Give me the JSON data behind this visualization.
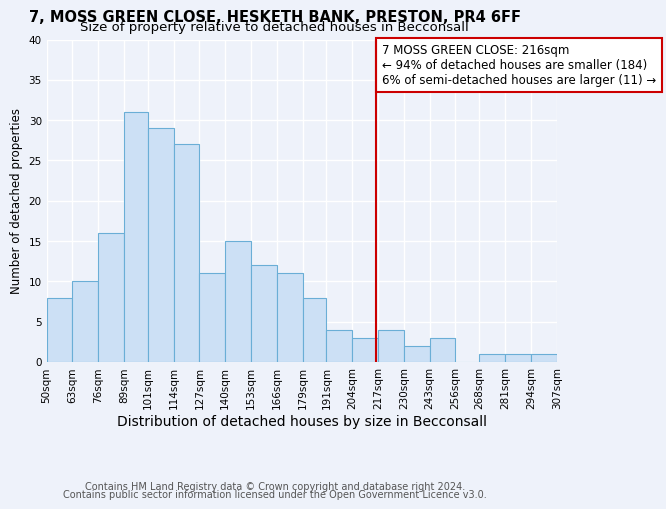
{
  "title1": "7, MOSS GREEN CLOSE, HESKETH BANK, PRESTON, PR4 6FF",
  "title2": "Size of property relative to detached houses in Becconsall",
  "xlabel": "Distribution of detached houses by size in Becconsall",
  "ylabel": "Number of detached properties",
  "bar_color": "#cce0f5",
  "bar_edge_color": "#6aaed6",
  "bins": [
    50,
    63,
    76,
    89,
    101,
    114,
    127,
    140,
    153,
    166,
    179,
    191,
    204,
    217,
    230,
    243,
    256,
    268,
    281,
    294,
    307
  ],
  "values": [
    8,
    10,
    16,
    31,
    29,
    27,
    11,
    15,
    12,
    11,
    8,
    4,
    3,
    4,
    2,
    3,
    0,
    1,
    1,
    1
  ],
  "tick_labels": [
    "50sqm",
    "63sqm",
    "76sqm",
    "89sqm",
    "101sqm",
    "114sqm",
    "127sqm",
    "140sqm",
    "153sqm",
    "166sqm",
    "179sqm",
    "191sqm",
    "204sqm",
    "217sqm",
    "230sqm",
    "243sqm",
    "256sqm",
    "268sqm",
    "281sqm",
    "294sqm",
    "307sqm"
  ],
  "vline_x": 216,
  "vline_color": "#cc0000",
  "annotation_text": "7 MOSS GREEN CLOSE: 216sqm\n← 94% of detached houses are smaller (184)\n6% of semi-detached houses are larger (11) →",
  "annotation_box_color": "#ffffff",
  "annotation_box_edge": "#cc0000",
  "ylim": [
    0,
    40
  ],
  "yticks": [
    0,
    5,
    10,
    15,
    20,
    25,
    30,
    35,
    40
  ],
  "footer1": "Contains HM Land Registry data © Crown copyright and database right 2024.",
  "footer2": "Contains public sector information licensed under the Open Government Licence v3.0.",
  "background_color": "#eef2fa",
  "grid_color": "#ffffff",
  "title_fontsize": 10.5,
  "subtitle_fontsize": 9.5,
  "xlabel_fontsize": 10,
  "ylabel_fontsize": 8.5,
  "tick_fontsize": 7.5,
  "footer_fontsize": 7,
  "annot_fontsize": 8.5
}
